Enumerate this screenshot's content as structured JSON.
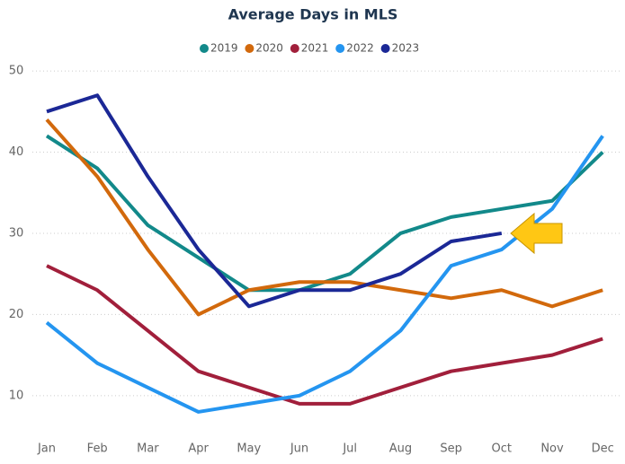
{
  "chart_data": {
    "type": "line",
    "title": "Average Days in MLS",
    "categories": [
      "Jan",
      "Feb",
      "Mar",
      "Apr",
      "May",
      "Jun",
      "Jul",
      "Aug",
      "Sep",
      "Oct",
      "Nov",
      "Dec"
    ],
    "series": [
      {
        "name": "2019",
        "color": "#12898a",
        "values": [
          42,
          38,
          31,
          27,
          23,
          23,
          25,
          30,
          32,
          33,
          34,
          40
        ]
      },
      {
        "name": "2020",
        "color": "#d2690c",
        "values": [
          44,
          37,
          28,
          20,
          23,
          24,
          24,
          23,
          22,
          23,
          21,
          23
        ]
      },
      {
        "name": "2021",
        "color": "#a11f3b",
        "values": [
          26,
          23,
          18,
          13,
          11,
          9,
          9,
          11,
          13,
          14,
          15,
          17
        ]
      },
      {
        "name": "2022",
        "color": "#2495f0",
        "values": [
          19,
          14,
          11,
          8,
          9,
          10,
          13,
          18,
          26,
          28,
          33,
          42
        ]
      },
      {
        "name": "2023",
        "color": "#1b2896",
        "values": [
          45,
          47,
          37,
          28,
          21,
          23,
          23,
          25,
          29,
          30,
          null,
          null
        ]
      }
    ],
    "ylim": [
      6,
      52
    ],
    "yticks": [
      10,
      20,
      30,
      40,
      50
    ],
    "grid": true
  }
}
